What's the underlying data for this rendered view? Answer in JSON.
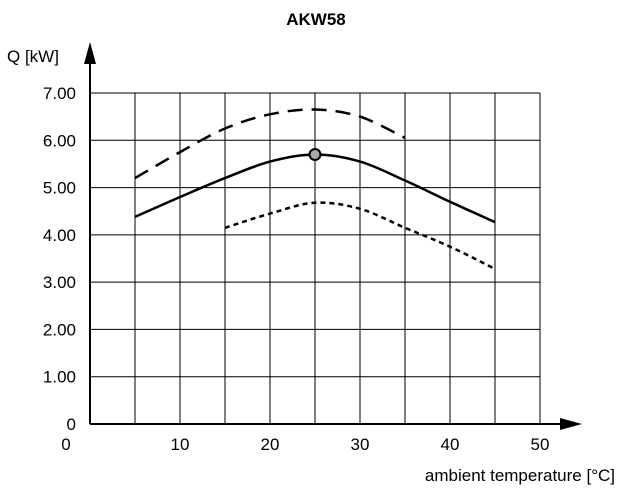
{
  "chart_data": {
    "type": "line",
    "title": "AKW58",
    "xlabel": "ambient temperature [°C]",
    "ylabel": "Q [kW]",
    "xlim": [
      0,
      50
    ],
    "ylim": [
      0,
      7
    ],
    "x_ticks": [
      "0",
      "10",
      "20",
      "30",
      "40",
      "50"
    ],
    "y_ticks": [
      "0",
      "1.00",
      "2.00",
      "3.00",
      "4.00",
      "5.00",
      "6.00",
      "7.00"
    ],
    "grid": true,
    "series": [
      {
        "style": "dashed",
        "x": [
          5,
          10,
          15,
          20,
          25,
          30,
          35
        ],
        "y": [
          5.2,
          5.75,
          6.25,
          6.55,
          6.65,
          6.5,
          6.05
        ]
      },
      {
        "style": "solid",
        "x": [
          5,
          10,
          15,
          20,
          25,
          30,
          35,
          40,
          45
        ],
        "y": [
          4.38,
          4.8,
          5.2,
          5.55,
          5.7,
          5.55,
          5.15,
          4.7,
          4.27
        ]
      },
      {
        "style": "dotted",
        "x": [
          15,
          20,
          25,
          30,
          35,
          40,
          45
        ],
        "y": [
          4.15,
          4.45,
          4.68,
          4.55,
          4.15,
          3.75,
          3.28
        ]
      }
    ],
    "highlight_point": {
      "x": 25,
      "y": 5.7
    }
  }
}
